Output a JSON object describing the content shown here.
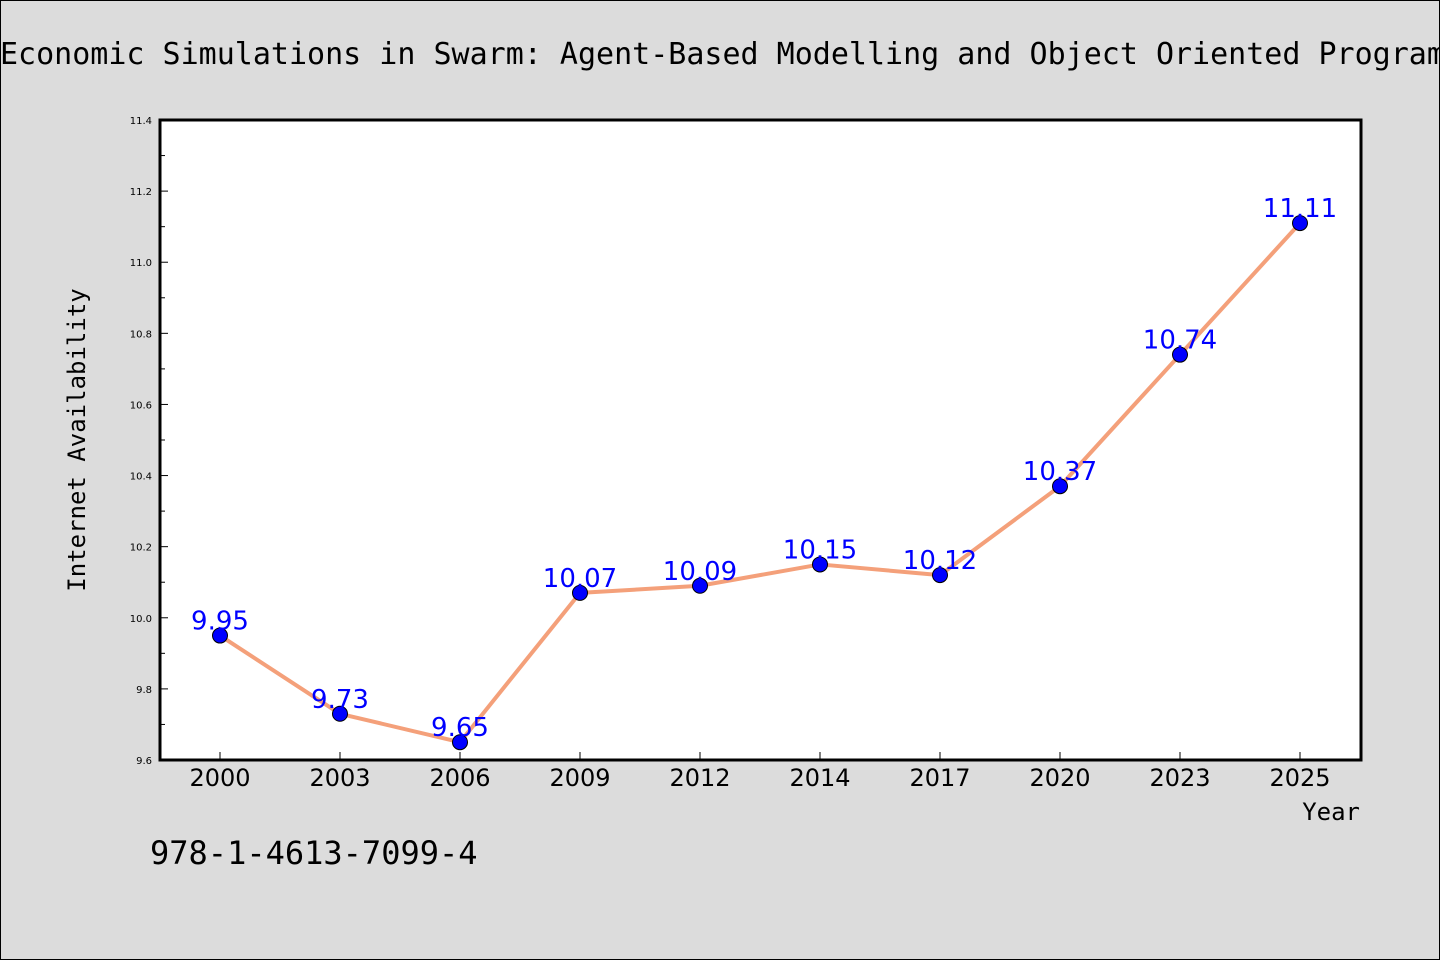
{
  "chart_data": {
    "type": "line",
    "title": "Economic Simulations in Swarm: Agent-Based Modelling and Object Oriented Programming",
    "xlabel": "Year",
    "ylabel": "Internet Availability",
    "categories": [
      "2000",
      "2003",
      "2006",
      "2009",
      "2012",
      "2014",
      "2017",
      "2020",
      "2023",
      "2025"
    ],
    "series": [
      {
        "values": [
          9.95,
          9.73,
          9.65,
          10.07,
          10.09,
          10.15,
          10.12,
          10.37,
          10.74,
          11.11
        ],
        "labels": [
          "9.95",
          "9.73",
          "9.65",
          "10.07",
          "10.09",
          "10.15",
          "10.12",
          "10.37",
          "10.74",
          "11.11"
        ],
        "line_color": "#f4a07a",
        "marker_color": "#0000ff"
      }
    ],
    "ylim": [
      9.6,
      11.4
    ],
    "yticks": [
      "9.6",
      "9.8",
      "10.0",
      "10.2",
      "10.4",
      "10.6",
      "10.8",
      "11.0",
      "11.2",
      "11.4"
    ],
    "grid": false,
    "legend": "none"
  },
  "footer": {
    "isbn": "978-1-4613-7099-4"
  },
  "colors": {
    "background": "#dcdcdc",
    "plot_area": "#ffffff",
    "line": "#f4a07a",
    "marker": "#0000ff",
    "data_label": "#0000ff"
  }
}
